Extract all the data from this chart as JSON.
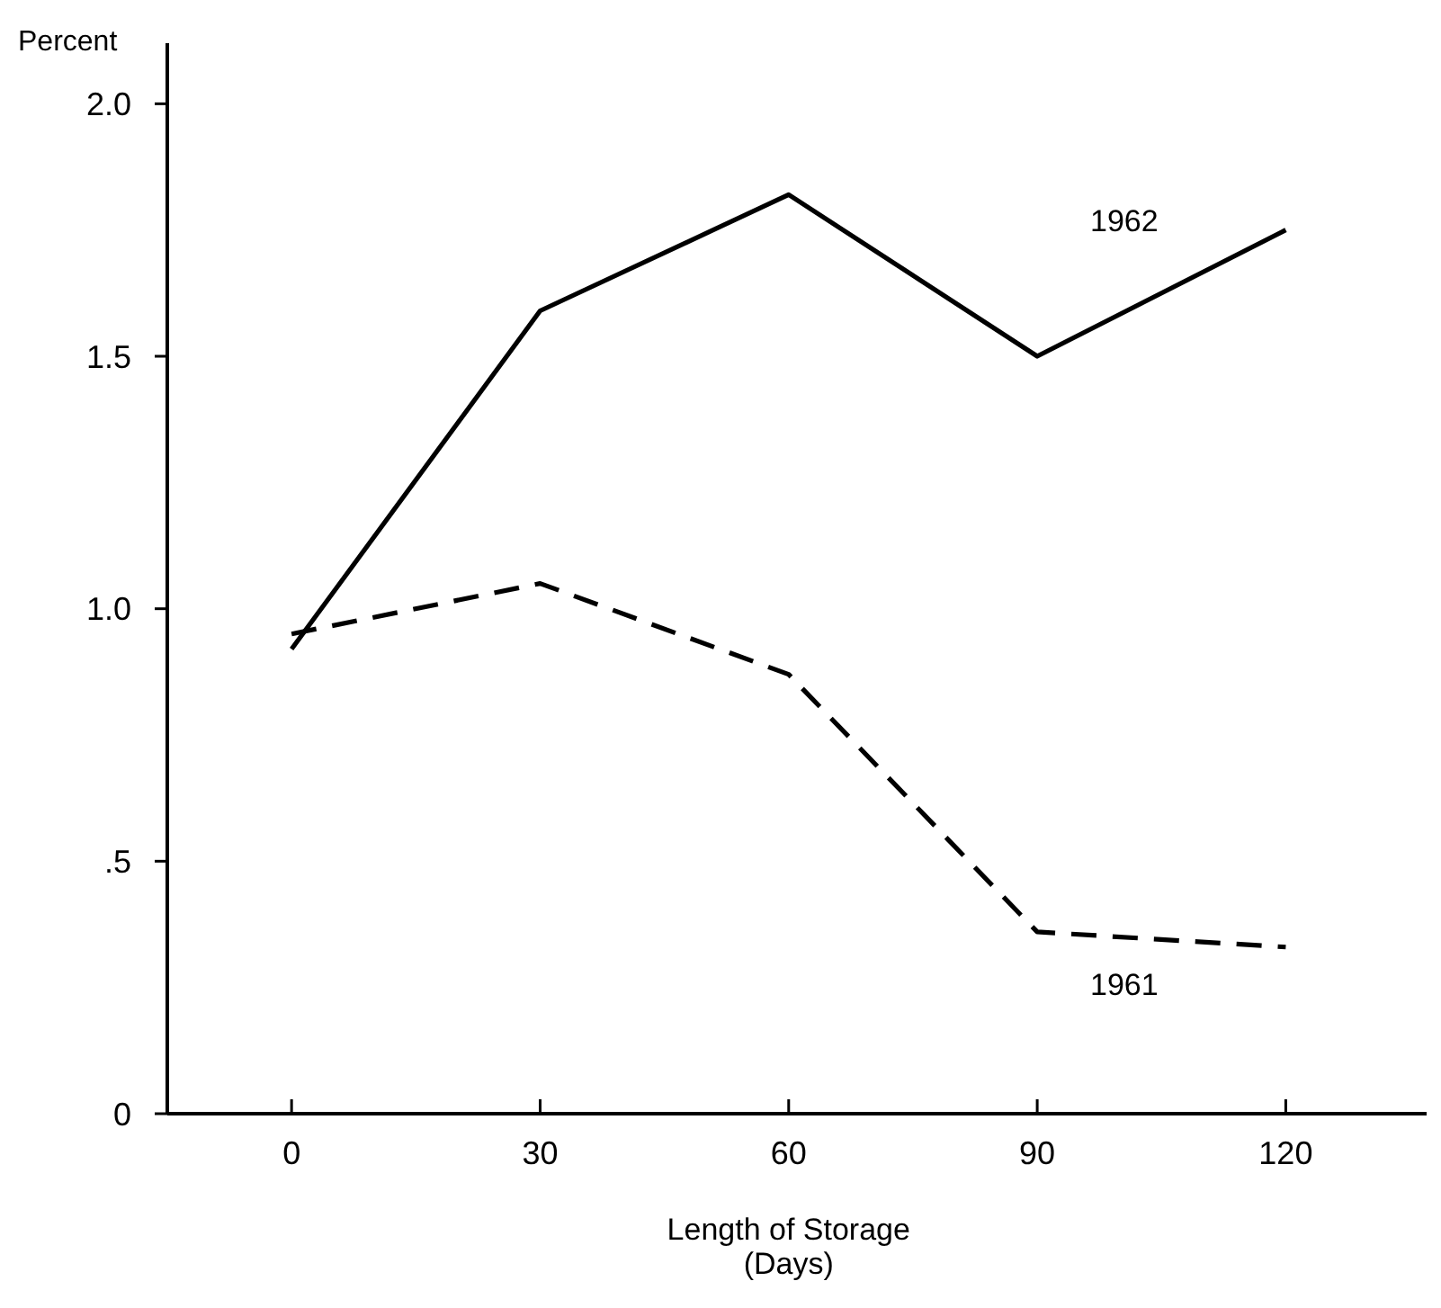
{
  "chart_data": {
    "type": "line",
    "xlabel": "Length of Storage\n(Days)",
    "ylabel": "Percent",
    "x": [
      0,
      30,
      60,
      90,
      120
    ],
    "series": [
      {
        "name": "1962",
        "color": "#000000",
        "values": [
          0.92,
          1.59,
          1.82,
          1.5,
          1.75
        ],
        "line_style": "solid"
      },
      {
        "name": "1961",
        "color": "#000000",
        "values": [
          0.95,
          1.05,
          0.87,
          0.36,
          0.33
        ],
        "line_style": "dashed"
      }
    ],
    "xlim": [
      -15,
      137
    ],
    "ylim": [
      0,
      2.12
    ],
    "xticks": [
      0,
      30,
      60,
      90,
      120
    ],
    "yticks": [
      {
        "value": 0,
        "label": "0"
      },
      {
        "value": 0.5,
        "label": ".5"
      },
      {
        "value": 1,
        "label": "1.0"
      },
      {
        "value": 1.5,
        "label": "1.5"
      },
      {
        "value": 2,
        "label": "2.0"
      }
    ],
    "marker": "none"
  }
}
